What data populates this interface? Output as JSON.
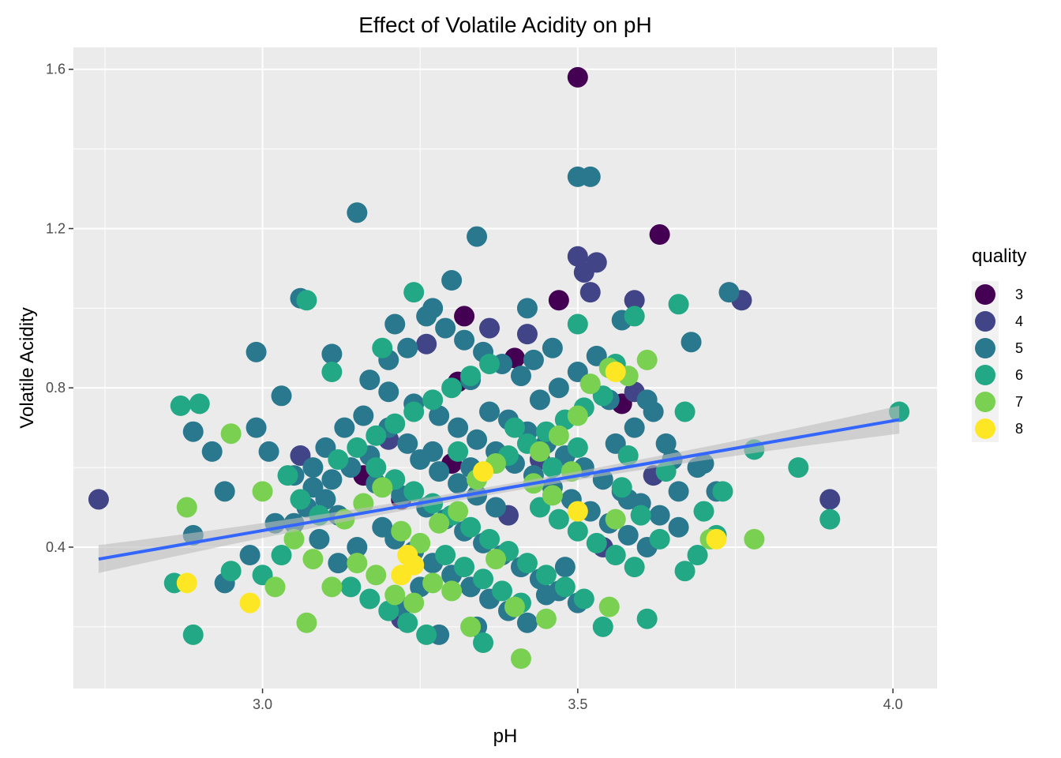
{
  "chart_data": {
    "type": "scatter",
    "title": "Effect of Volatile Acidity on pH",
    "xlabel": "pH",
    "ylabel": "Volatile Acidity",
    "xlim": [
      2.7,
      4.07
    ],
    "ylim": [
      0.045,
      1.655
    ],
    "x_ticks": [
      3.0,
      3.5,
      4.0
    ],
    "x_tick_labels": [
      "3.0",
      "3.5",
      "4.0"
    ],
    "y_ticks": [
      0.4,
      0.8,
      1.2,
      1.6
    ],
    "y_tick_labels": [
      "0.4",
      "0.8",
      "1.2",
      "1.6"
    ],
    "grid": true,
    "legend": {
      "title": "quality",
      "position": "right",
      "entries": [
        {
          "label": "3",
          "color": "#440154"
        },
        {
          "label": "4",
          "color": "#414487"
        },
        {
          "label": "5",
          "color": "#2a788e"
        },
        {
          "label": "6",
          "color": "#22a884"
        },
        {
          "label": "7",
          "color": "#7ad151"
        },
        {
          "label": "8",
          "color": "#fde725"
        }
      ]
    },
    "trend_line": {
      "color": "#3366ff",
      "band_color": "#bdbdbd",
      "start": [
        2.74,
        0.37
      ],
      "end": [
        4.01,
        0.72
      ],
      "band_halfwidth_ends": 0.035,
      "band_halfwidth_mid": 0.01
    },
    "series": [
      {
        "name": "3",
        "points": [
          [
            3.5,
            1.58
          ],
          [
            3.63,
            1.185
          ],
          [
            3.47,
            1.02
          ],
          [
            3.32,
            0.98
          ],
          [
            3.4,
            0.875
          ],
          [
            3.31,
            0.815
          ],
          [
            3.57,
            0.76
          ],
          [
            3.3,
            0.61
          ],
          [
            3.22,
            0.52
          ],
          [
            3.16,
            0.58
          ]
        ]
      },
      {
        "name": "4",
        "points": [
          [
            2.74,
            0.52
          ],
          [
            3.5,
            1.13
          ],
          [
            3.51,
            1.09
          ],
          [
            3.53,
            1.115
          ],
          [
            3.52,
            1.04
          ],
          [
            3.59,
            1.02
          ],
          [
            3.76,
            1.02
          ],
          [
            3.42,
            0.935
          ],
          [
            3.9,
            0.52
          ],
          [
            3.06,
            0.63
          ],
          [
            3.39,
            0.48
          ],
          [
            3.59,
            0.79
          ],
          [
            3.36,
            0.95
          ],
          [
            3.26,
            0.91
          ],
          [
            3.62,
            0.58
          ],
          [
            3.2,
            0.67
          ],
          [
            3.44,
            0.62
          ],
          [
            3.54,
            0.4
          ],
          [
            3.22,
            0.22
          ]
        ]
      },
      {
        "name": "5",
        "points": [
          [
            3.5,
            1.33
          ],
          [
            3.52,
            1.33
          ],
          [
            3.15,
            1.24
          ],
          [
            3.34,
            1.18
          ],
          [
            3.3,
            1.07
          ],
          [
            3.06,
            1.025
          ],
          [
            3.74,
            1.04
          ],
          [
            3.42,
            1.0
          ],
          [
            3.68,
            0.915
          ],
          [
            2.99,
            0.89
          ],
          [
            3.11,
            0.885
          ],
          [
            3.57,
            0.97
          ],
          [
            3.61,
            0.77
          ],
          [
            3.03,
            0.78
          ],
          [
            2.89,
            0.69
          ],
          [
            2.92,
            0.64
          ],
          [
            2.94,
            0.54
          ],
          [
            2.99,
            0.7
          ],
          [
            3.01,
            0.64
          ],
          [
            3.05,
            0.58
          ],
          [
            3.08,
            0.55
          ],
          [
            3.1,
            0.52
          ],
          [
            3.12,
            0.48
          ],
          [
            3.02,
            0.46
          ],
          [
            2.98,
            0.38
          ],
          [
            2.94,
            0.31
          ],
          [
            2.89,
            0.43
          ],
          [
            3.17,
            0.82
          ],
          [
            3.2,
            0.79
          ],
          [
            3.24,
            0.76
          ],
          [
            3.28,
            0.73
          ],
          [
            3.31,
            0.7
          ],
          [
            3.34,
            0.67
          ],
          [
            3.37,
            0.64
          ],
          [
            3.4,
            0.61
          ],
          [
            3.43,
            0.58
          ],
          [
            3.46,
            0.55
          ],
          [
            3.49,
            0.52
          ],
          [
            3.52,
            0.49
          ],
          [
            3.55,
            0.46
          ],
          [
            3.58,
            0.43
          ],
          [
            3.61,
            0.4
          ],
          [
            3.18,
            0.56
          ],
          [
            3.22,
            0.53
          ],
          [
            3.26,
            0.5
          ],
          [
            3.29,
            0.47
          ],
          [
            3.32,
            0.44
          ],
          [
            3.35,
            0.41
          ],
          [
            3.38,
            0.38
          ],
          [
            3.41,
            0.35
          ],
          [
            3.44,
            0.32
          ],
          [
            3.47,
            0.29
          ],
          [
            3.5,
            0.26
          ],
          [
            3.25,
            0.62
          ],
          [
            3.28,
            0.59
          ],
          [
            3.31,
            0.56
          ],
          [
            3.34,
            0.53
          ],
          [
            3.37,
            0.5
          ],
          [
            3.2,
            0.7
          ],
          [
            3.23,
            0.66
          ],
          [
            3.27,
            0.64
          ],
          [
            3.33,
            0.6
          ],
          [
            3.36,
            0.74
          ],
          [
            3.39,
            0.72
          ],
          [
            3.42,
            0.69
          ],
          [
            3.45,
            0.66
          ],
          [
            3.48,
            0.63
          ],
          [
            3.51,
            0.6
          ],
          [
            3.54,
            0.57
          ],
          [
            3.57,
            0.54
          ],
          [
            3.6,
            0.51
          ],
          [
            3.63,
            0.48
          ],
          [
            3.66,
            0.45
          ],
          [
            3.69,
            0.6
          ],
          [
            3.72,
            0.54
          ],
          [
            3.65,
            0.62
          ],
          [
            3.62,
            0.74
          ],
          [
            3.59,
            0.7
          ],
          [
            3.56,
            0.66
          ],
          [
            3.53,
            0.88
          ],
          [
            3.5,
            0.84
          ],
          [
            3.47,
            0.8
          ],
          [
            3.44,
            0.77
          ],
          [
            3.41,
            0.83
          ],
          [
            3.38,
            0.86
          ],
          [
            3.35,
            0.89
          ],
          [
            3.32,
            0.92
          ],
          [
            3.29,
            0.95
          ],
          [
            3.26,
            0.98
          ],
          [
            3.23,
            0.9
          ],
          [
            3.2,
            0.87
          ],
          [
            3.17,
            0.63
          ],
          [
            3.14,
            0.6
          ],
          [
            3.11,
            0.57
          ],
          [
            3.13,
            0.7
          ],
          [
            3.16,
            0.73
          ],
          [
            3.19,
            0.45
          ],
          [
            3.21,
            0.42
          ],
          [
            3.24,
            0.39
          ],
          [
            3.27,
            0.36
          ],
          [
            3.3,
            0.33
          ],
          [
            3.33,
            0.3
          ],
          [
            3.36,
            0.27
          ],
          [
            3.39,
            0.24
          ],
          [
            3.42,
            0.21
          ],
          [
            3.45,
            0.28
          ],
          [
            3.48,
            0.35
          ],
          [
            3.28,
            0.18
          ],
          [
            3.34,
            0.2
          ],
          [
            3.22,
            0.25
          ],
          [
            3.25,
            0.3
          ],
          [
            3.15,
            0.4
          ],
          [
            3.12,
            0.36
          ],
          [
            3.09,
            0.42
          ],
          [
            3.07,
            0.5
          ],
          [
            3.05,
            0.46
          ],
          [
            3.1,
            0.65
          ],
          [
            3.08,
            0.6
          ],
          [
            3.21,
            0.96
          ],
          [
            3.27,
            1.0
          ],
          [
            3.33,
            0.82
          ],
          [
            3.46,
            0.9
          ],
          [
            3.43,
            0.87
          ],
          [
            3.55,
            0.77
          ],
          [
            3.58,
            0.52
          ],
          [
            3.64,
            0.66
          ],
          [
            3.66,
            0.54
          ],
          [
            3.7,
            0.61
          ]
        ]
      },
      {
        "name": "6",
        "points": [
          [
            4.01,
            0.74
          ],
          [
            2.87,
            0.755
          ],
          [
            2.9,
            0.76
          ],
          [
            3.85,
            0.6
          ],
          [
            3.9,
            0.47
          ],
          [
            3.78,
            0.645
          ],
          [
            3.66,
            1.01
          ],
          [
            3.07,
            1.02
          ],
          [
            3.24,
            1.04
          ],
          [
            3.5,
            0.96
          ],
          [
            3.67,
            0.74
          ],
          [
            3.73,
            0.54
          ],
          [
            3.7,
            0.49
          ],
          [
            3.56,
            0.86
          ],
          [
            3.59,
            0.98
          ],
          [
            3.72,
            0.43
          ],
          [
            3.69,
            0.38
          ],
          [
            3.67,
            0.34
          ],
          [
            2.86,
            0.31
          ],
          [
            2.89,
            0.18
          ],
          [
            2.95,
            0.34
          ],
          [
            3.18,
            0.6
          ],
          [
            3.21,
            0.57
          ],
          [
            3.24,
            0.54
          ],
          [
            3.27,
            0.51
          ],
          [
            3.3,
            0.48
          ],
          [
            3.33,
            0.45
          ],
          [
            3.36,
            0.42
          ],
          [
            3.39,
            0.39
          ],
          [
            3.42,
            0.36
          ],
          [
            3.45,
            0.33
          ],
          [
            3.48,
            0.3
          ],
          [
            3.51,
            0.27
          ],
          [
            3.54,
            0.2
          ],
          [
            3.61,
            0.22
          ],
          [
            3.12,
            0.62
          ],
          [
            3.15,
            0.65
          ],
          [
            3.18,
            0.68
          ],
          [
            3.21,
            0.71
          ],
          [
            3.24,
            0.74
          ],
          [
            3.27,
            0.77
          ],
          [
            3.3,
            0.8
          ],
          [
            3.33,
            0.83
          ],
          [
            3.36,
            0.86
          ],
          [
            3.39,
            0.63
          ],
          [
            3.42,
            0.66
          ],
          [
            3.45,
            0.69
          ],
          [
            3.48,
            0.72
          ],
          [
            3.51,
            0.75
          ],
          [
            3.54,
            0.78
          ],
          [
            3.57,
            0.55
          ],
          [
            3.6,
            0.48
          ],
          [
            3.63,
            0.42
          ],
          [
            3.06,
            0.52
          ],
          [
            3.09,
            0.48
          ],
          [
            3.03,
            0.38
          ],
          [
            3.0,
            0.33
          ],
          [
            3.04,
            0.58
          ],
          [
            3.14,
            0.3
          ],
          [
            3.17,
            0.27
          ],
          [
            3.2,
            0.24
          ],
          [
            3.23,
            0.21
          ],
          [
            3.26,
            0.18
          ],
          [
            3.29,
            0.38
          ],
          [
            3.32,
            0.35
          ],
          [
            3.35,
            0.32
          ],
          [
            3.38,
            0.29
          ],
          [
            3.41,
            0.26
          ],
          [
            3.44,
            0.5
          ],
          [
            3.47,
            0.47
          ],
          [
            3.5,
            0.44
          ],
          [
            3.53,
            0.41
          ],
          [
            3.56,
            0.38
          ],
          [
            3.59,
            0.35
          ],
          [
            3.35,
            0.16
          ],
          [
            3.4,
            0.7
          ],
          [
            3.5,
            0.65
          ],
          [
            3.19,
            0.9
          ],
          [
            3.11,
            0.84
          ],
          [
            3.58,
            0.63
          ],
          [
            3.64,
            0.59
          ],
          [
            3.46,
            0.6
          ],
          [
            3.31,
            0.64
          ]
        ]
      },
      {
        "name": "7",
        "points": [
          [
            2.95,
            0.685
          ],
          [
            2.88,
            0.5
          ],
          [
            3.07,
            0.21
          ],
          [
            3.41,
            0.12
          ],
          [
            3.55,
            0.25
          ],
          [
            3.71,
            0.42
          ],
          [
            3.78,
            0.42
          ],
          [
            3.56,
            0.47
          ],
          [
            3.45,
            0.22
          ],
          [
            3.11,
            0.3
          ],
          [
            3.15,
            0.36
          ],
          [
            3.18,
            0.33
          ],
          [
            3.21,
            0.28
          ],
          [
            3.24,
            0.26
          ],
          [
            3.27,
            0.31
          ],
          [
            3.3,
            0.29
          ],
          [
            3.33,
            0.2
          ],
          [
            3.37,
            0.37
          ],
          [
            3.4,
            0.25
          ],
          [
            3.43,
            0.56
          ],
          [
            3.46,
            0.53
          ],
          [
            3.49,
            0.59
          ],
          [
            3.52,
            0.81
          ],
          [
            3.55,
            0.85
          ],
          [
            3.58,
            0.83
          ],
          [
            3.61,
            0.87
          ],
          [
            3.0,
            0.54
          ],
          [
            3.02,
            0.3
          ],
          [
            3.05,
            0.42
          ],
          [
            3.08,
            0.37
          ],
          [
            3.13,
            0.47
          ],
          [
            3.16,
            0.51
          ],
          [
            3.19,
            0.55
          ],
          [
            3.22,
            0.44
          ],
          [
            3.25,
            0.41
          ],
          [
            3.28,
            0.46
          ],
          [
            3.31,
            0.49
          ],
          [
            3.34,
            0.57
          ],
          [
            3.37,
            0.61
          ],
          [
            3.5,
            0.73
          ],
          [
            3.47,
            0.68
          ],
          [
            3.44,
            0.64
          ]
        ]
      },
      {
        "name": "8",
        "points": [
          [
            2.88,
            0.31
          ],
          [
            2.98,
            0.26
          ],
          [
            3.22,
            0.33
          ],
          [
            3.23,
            0.38
          ],
          [
            3.24,
            0.355
          ],
          [
            3.56,
            0.84
          ],
          [
            3.72,
            0.42
          ],
          [
            3.5,
            0.49
          ],
          [
            3.35,
            0.59
          ]
        ]
      }
    ]
  }
}
